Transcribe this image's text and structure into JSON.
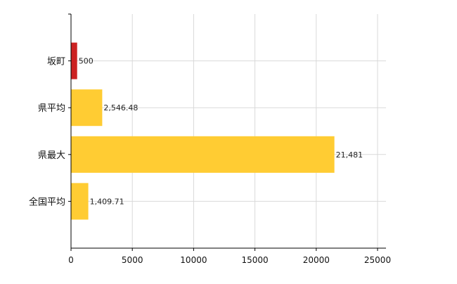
{
  "chart_data": {
    "type": "bar",
    "orientation": "horizontal",
    "title": "",
    "xlabel": "",
    "ylabel": "",
    "categories": [
      "坂町",
      "県平均",
      "県最大",
      "全国平均"
    ],
    "values": [
      500,
      2546.48,
      21481,
      1409.71
    ],
    "value_labels": [
      "500",
      "2,546.48",
      "21,481",
      "1,409.71"
    ],
    "bar_colors": [
      "#cc2222",
      "#ffcc33",
      "#ffcc33",
      "#ffcc33"
    ],
    "xlim": [
      0,
      25000
    ],
    "xticks": [
      0,
      5000,
      10000,
      15000,
      20000,
      25000
    ],
    "xtick_labels": [
      "0",
      "5000",
      "10000",
      "15000",
      "20000",
      "25000"
    ],
    "grid": true,
    "legend": "none"
  }
}
